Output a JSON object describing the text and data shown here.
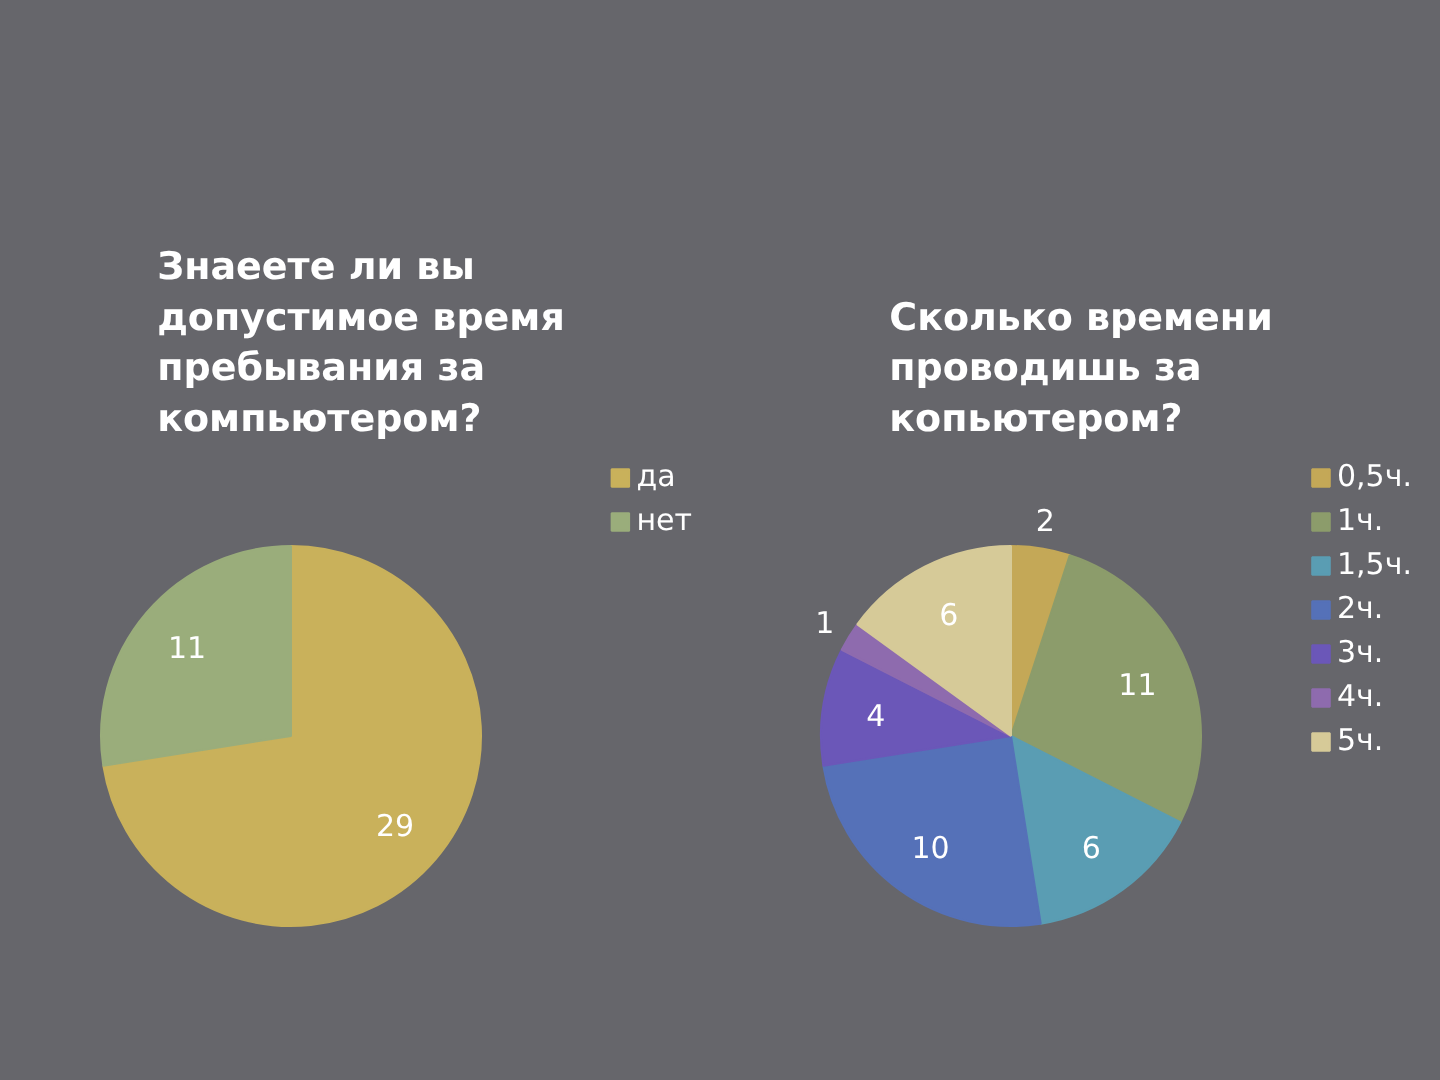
{
  "chart_data": [
    {
      "type": "pie",
      "title": "Знаеете ли вы допустимое время пребывания за компьютером?",
      "categories": [
        "да",
        "нет"
      ],
      "values": [
        29,
        11
      ],
      "colors": [
        "#c9b15b",
        "#9aad7b"
      ],
      "data_labels": true,
      "legend": "top right"
    },
    {
      "type": "pie",
      "title": "Сколько времени проводишь за копьютером?",
      "categories": [
        "0,5ч.",
        "1ч.",
        "1,5ч.",
        "2ч.",
        "3ч.",
        "4ч.",
        "5ч."
      ],
      "values": [
        2,
        11,
        6,
        10,
        4,
        1,
        6
      ],
      "colors": [
        "#c4a857",
        "#8c9c6b",
        "#5a9db3",
        "#5571b8",
        "#6b57b8",
        "#8e6bae",
        "#d6ca98"
      ],
      "data_labels": true,
      "legend": "top right"
    }
  ]
}
